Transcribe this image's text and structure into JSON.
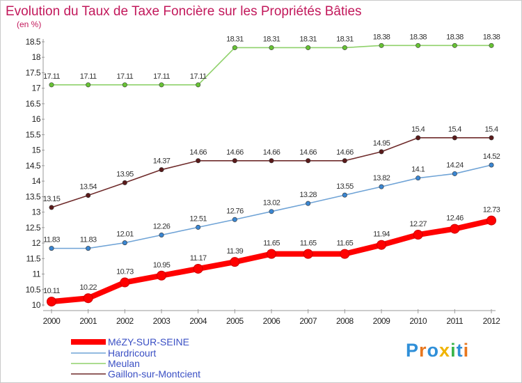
{
  "chart_data": {
    "type": "line",
    "title": "Evolution du Taux de Taxe Foncière sur les Propriétés Bâties",
    "unit_label": "(en %)",
    "x": [
      "2000",
      "2001",
      "2002",
      "2003",
      "2004",
      "2005",
      "2006",
      "2007",
      "2008",
      "2009",
      "2010",
      "2011",
      "2012"
    ],
    "ylim": [
      10,
      18.5
    ],
    "yticks": [
      10,
      10.5,
      11,
      11.5,
      12,
      12.5,
      13,
      13.5,
      14,
      14.5,
      15,
      15.5,
      16,
      16.5,
      17,
      17.5,
      18,
      18.5
    ],
    "grid": false,
    "legend_position": "bottom-left",
    "series": [
      {
        "name": "MéZY-SUR-SEINE",
        "color": "#ff0000",
        "marker_color": "#ff0000",
        "values": [
          10.11,
          10.22,
          10.73,
          10.95,
          11.17,
          11.39,
          11.65,
          11.65,
          11.65,
          11.94,
          12.27,
          12.46,
          12.73
        ],
        "labels": [
          "10.11",
          "10.22",
          "10.73",
          "10.95",
          "11.17",
          "11.39",
          "11.65",
          "11.65",
          "11.65",
          "11.94",
          "12.27",
          "12.46",
          "12.73"
        ]
      },
      {
        "name": "Hardricourt",
        "color": "#6fa3d6",
        "marker_color": "#3a86d2",
        "values": [
          11.83,
          11.83,
          12.01,
          12.26,
          12.51,
          12.76,
          13.02,
          13.28,
          13.55,
          13.82,
          14.1,
          14.24,
          14.52
        ],
        "labels": [
          "11.83",
          "11.83",
          "12.01",
          "12.26",
          "12.51",
          "12.76",
          "13.02",
          "13.28",
          "13.55",
          "13.82",
          "14.1",
          "14.24",
          "14.52"
        ]
      },
      {
        "name": "Meulan",
        "color": "#8fd16a",
        "marker_color": "#67c234",
        "values": [
          17.11,
          17.11,
          17.11,
          17.11,
          17.11,
          18.31,
          18.31,
          18.31,
          18.31,
          18.38,
          18.38,
          18.38,
          18.38
        ],
        "labels": [
          "17.11",
          "17.11",
          "17.11",
          "17.11",
          "17.11",
          "18.31",
          "18.31",
          "18.31",
          "18.31",
          "18.38",
          "18.38",
          "18.38",
          "18.38"
        ]
      },
      {
        "name": "Gaillon-sur-Montcient",
        "color": "#6e2a2a",
        "marker_color": "#5a1a1a",
        "values": [
          13.15,
          13.54,
          13.95,
          14.37,
          14.66,
          14.66,
          14.66,
          14.66,
          14.66,
          14.95,
          15.4,
          15.4,
          15.4
        ],
        "labels": [
          "13.15",
          "13.54",
          "13.95",
          "14.37",
          "14.66",
          "14.66",
          "14.66",
          "14.66",
          "14.66",
          "14.95",
          "15.4",
          "15.4",
          "15.4"
        ]
      }
    ]
  },
  "logo": {
    "text": "Proxiti",
    "colors": [
      "#2f8fd8",
      "#e8771e",
      "#2f8fd8",
      "#f0b400",
      "#3ab54a",
      "#2f8fd8",
      "#e8771e"
    ]
  }
}
